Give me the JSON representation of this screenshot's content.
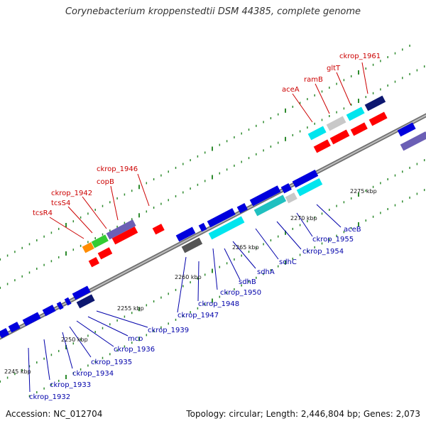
{
  "title": "Corynebacterium kroppenstedtii DSM 44385, complete genome",
  "footer": {
    "accession": "Accession: NC_012704",
    "summary": "Topology: circular; Length: 2,446,804 bp; Genes: 2,073"
  },
  "colors": {
    "backbone": "#999999",
    "tick": "#2e8b2e",
    "label_top": "#cc0000",
    "label_bottom": "#0000aa"
  },
  "scale_labels": {
    "s2245": "2245 kbp",
    "s2250": "2250 kbp",
    "s2255": "2255 kbp",
    "s2260": "2260 kbp",
    "s2265": "2265 kbp",
    "s2270": "2270 kbp",
    "s2275": "2275 kbp"
  },
  "gene_labels_top": {
    "tcsR4": "tcsR4",
    "tcsS4": "tcsS4",
    "ckrop_1942": "ckrop_1942",
    "copB": "copB",
    "ckrop_1946": "ckrop_1946",
    "aceA": "aceA",
    "ramB": "ramB",
    "gltT": "gltT",
    "ckrop_1961": "ckrop_1961"
  },
  "gene_labels_bottom": {
    "ckrop_1932": "ckrop_1932",
    "ckrop_1933": "ckrop_1933",
    "ckrop_1934": "ckrop_1934",
    "ckrop_1935": "ckrop_1935",
    "ckrop_1936": "ckrop_1936",
    "mco": "mco",
    "ckrop_1939": "ckrop_1939",
    "ckrop_1947": "ckrop_1947",
    "ckrop_1948": "ckrop_1948",
    "ckrop_1950": "ckrop_1950",
    "sdhB": "sdhB",
    "sdhA": "sdhA",
    "sdhC": "sdhC",
    "ckrop_1954": "ckrop_1954",
    "ckrop_1955": "ckrop_1955",
    "aceB": "aceB"
  }
}
